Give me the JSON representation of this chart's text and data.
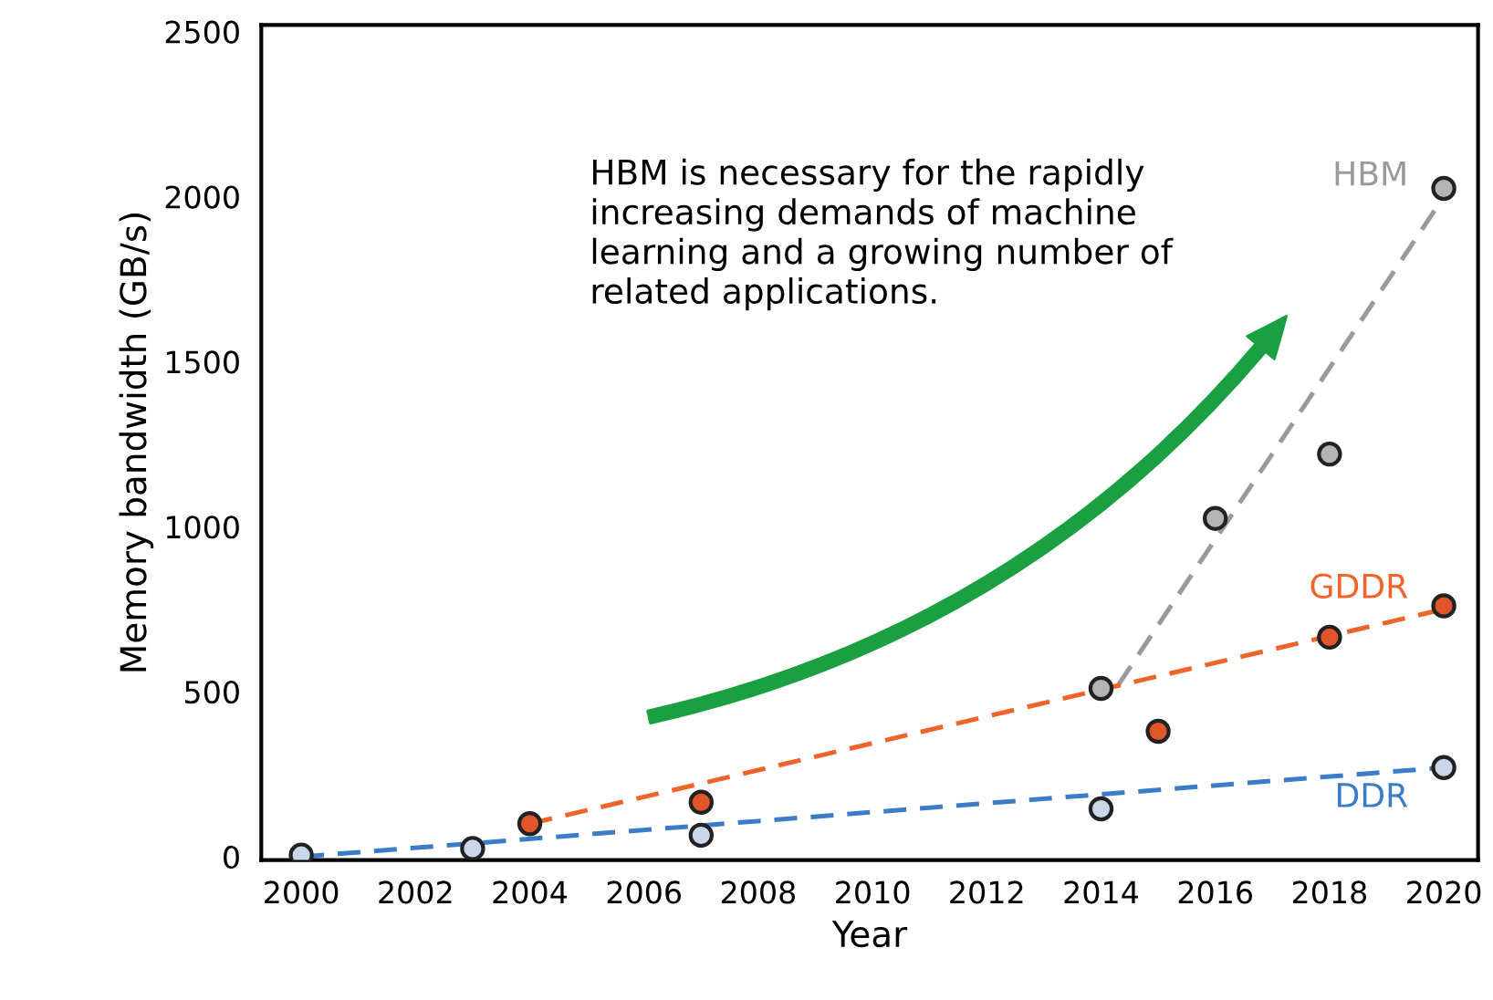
{
  "chart_data": {
    "type": "scatter",
    "xlabel": "Year",
    "ylabel": "Memory bandwidth (GB/s)",
    "xlim": [
      1999.3,
      2020.6
    ],
    "xticks": [
      2000,
      2002,
      2004,
      2006,
      2008,
      2010,
      2012,
      2014,
      2016,
      2018,
      2020
    ],
    "ylim": [
      -10,
      2520
    ],
    "yticks": [
      0,
      500,
      1000,
      1500,
      2000,
      2500
    ],
    "grid": false,
    "legend": false,
    "annotations": [
      "HBM is necessary for the rapidly increasing demands of machine learning and a growing number of related applications."
    ],
    "series": [
      {
        "type": "line",
        "name": "HBM",
        "color": "#9a9a9a",
        "x": [
          2014.3,
          2020
        ],
        "values": [
          520,
          2000
        ],
        "line_style": "dashed",
        "marker": "none"
      },
      {
        "type": "line",
        "name": "GDDR",
        "color": "#f0642c",
        "x": [
          2004,
          2020
        ],
        "values": [
          100,
          750
        ],
        "line_style": "dashed",
        "marker": "none"
      },
      {
        "type": "line",
        "name": "DDR",
        "color": "#3a7cc7",
        "x": [
          2000,
          2020
        ],
        "values": [
          0,
          270
        ],
        "line_style": "dashed",
        "marker": "none"
      },
      {
        "color": "#b4b4b4",
        "x": [
          2014,
          2016,
          2018,
          2020
        ],
        "values": [
          510,
          1025,
          1220,
          2025
        ],
        "marker": "circle"
      },
      {
        "color": "#e0552a",
        "x": [
          2004,
          2007,
          2015,
          2018,
          2020
        ],
        "values": [
          100,
          165,
          380,
          665,
          760
        ],
        "marker": "circle"
      },
      {
        "color": "#c8d8ea",
        "x": [
          2000,
          2003,
          2007,
          2014,
          2020
        ],
        "values": [
          5,
          25,
          65,
          145,
          270
        ],
        "marker": "circle"
      }
    ]
  }
}
